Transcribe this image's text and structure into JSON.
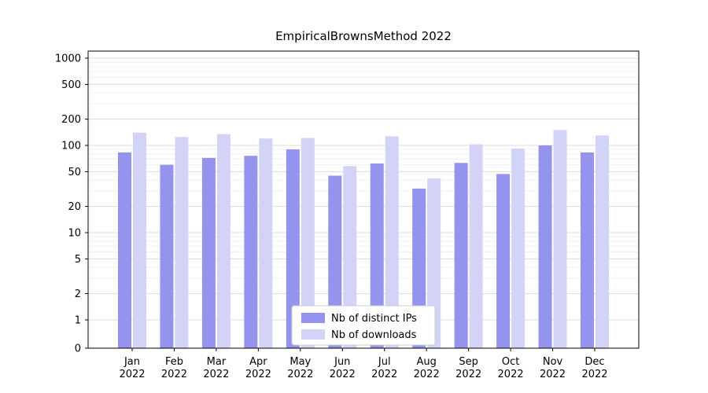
{
  "chart_data": {
    "type": "bar",
    "title": "EmpiricalBrownsMethod 2022",
    "yscale": "symlog",
    "grid": true,
    "legend_position": "lower center",
    "background": "#ffffff",
    "categories": [
      "Jan 2022",
      "Feb 2022",
      "Mar 2022",
      "Apr 2022",
      "May 2022",
      "Jun 2022",
      "Jul 2022",
      "Aug 2022",
      "Sep 2022",
      "Oct 2022",
      "Nov 2022",
      "Dec 2022"
    ],
    "yticks": [
      0,
      1,
      2,
      5,
      10,
      20,
      50,
      100,
      200,
      500,
      1000
    ],
    "ylim": [
      0,
      1200
    ],
    "series": [
      {
        "name": "Nb of distinct IPs",
        "color": "#9494ee",
        "values": [
          83,
          60,
          72,
          76,
          90,
          45,
          62,
          32,
          63,
          47,
          100,
          83
        ]
      },
      {
        "name": "Nb of downloads",
        "color": "#d3d3f8",
        "values": [
          140,
          125,
          135,
          120,
          122,
          58,
          127,
          42,
          103,
          92,
          150,
          130
        ]
      }
    ]
  }
}
